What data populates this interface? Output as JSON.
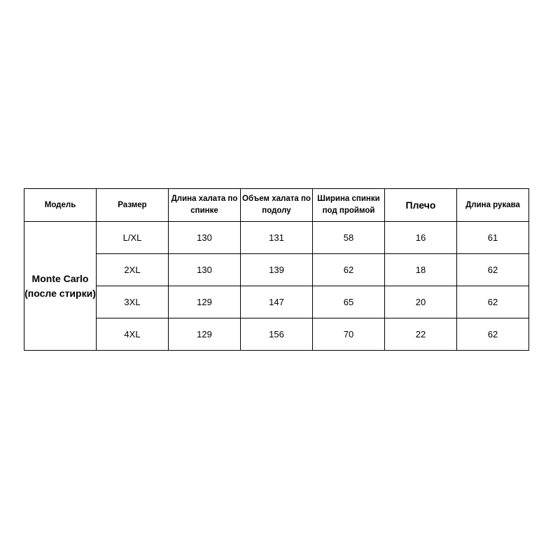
{
  "table": {
    "headers": [
      "Модель",
      "Размер",
      "Длина халата по спинке",
      "Объем халата по подолу",
      "Ширина спинки под проймой",
      "Плечо",
      "Длина рукава"
    ],
    "model": {
      "line1": "Monte Carlo",
      "line2": "(после стирки)"
    },
    "rows": [
      [
        "L/XL",
        "130",
        "131",
        "58",
        "16",
        "61"
      ],
      [
        "2XL",
        "130",
        "139",
        "62",
        "18",
        "62"
      ],
      [
        "3XL",
        "129",
        "147",
        "65",
        "20",
        "62"
      ],
      [
        "4XL",
        "129",
        "156",
        "70",
        "22",
        "62"
      ]
    ]
  }
}
